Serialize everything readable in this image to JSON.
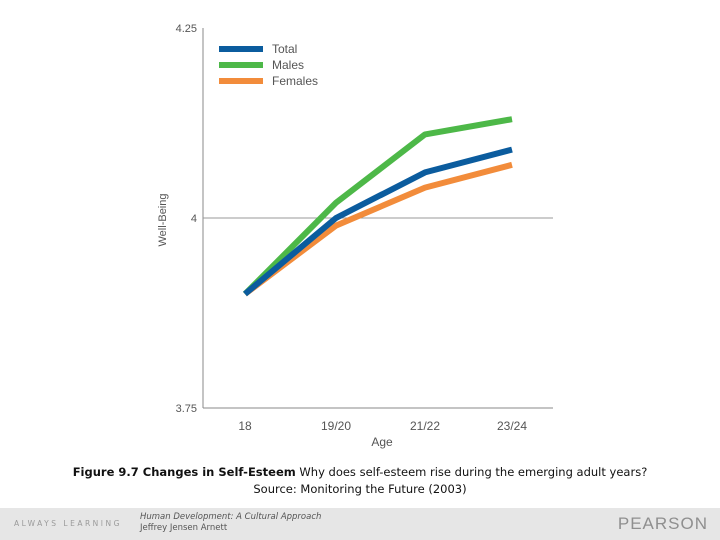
{
  "chart_data": {
    "type": "line",
    "categories": [
      "18",
      "19/20",
      "21/22",
      "23/24"
    ],
    "series": [
      {
        "name": "Total",
        "color": "#0b5c9e",
        "values": [
          3.9,
          4.0,
          4.06,
          4.09
        ]
      },
      {
        "name": "Males",
        "color": "#4db848",
        "values": [
          3.9,
          4.02,
          4.11,
          4.13
        ]
      },
      {
        "name": "Females",
        "color": "#f28c3b",
        "values": [
          3.9,
          3.99,
          4.04,
          4.07
        ]
      }
    ],
    "xlabel": "Age",
    "ylabel": "Well-Being",
    "ylim": [
      3.75,
      4.25
    ],
    "yticks": [
      "4.25",
      "4",
      "3.75"
    ],
    "grid": "horizontal line at 4",
    "legend": "top-left"
  },
  "caption": {
    "figure_label": "Figure 9.7   Changes in Self-Esteem",
    "question": "  Why does self-esteem rise during the emerging adult years?",
    "source": "Source: Monitoring the Future (2003)"
  },
  "footer": {
    "left_text": "ALWAYS LEARNING",
    "book_title": "Human Development: A Cultural Approach",
    "author": "Jeffrey Jensen Arnett",
    "brand": "PEARSON"
  }
}
